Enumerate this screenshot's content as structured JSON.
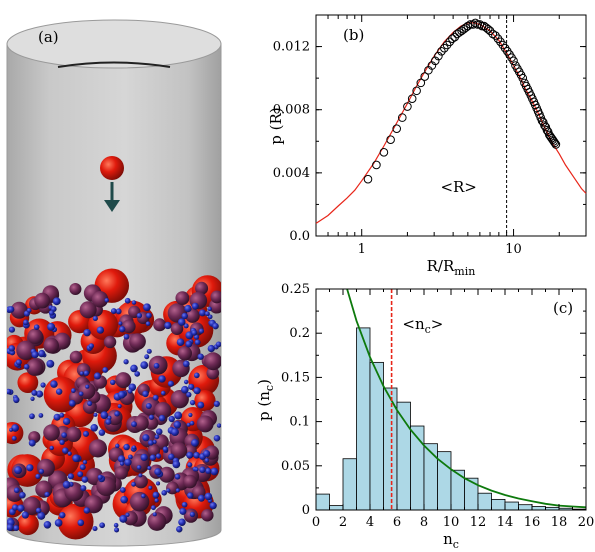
{
  "panels": {
    "a": "(a)",
    "b": "(b)",
    "c": "(c)"
  },
  "chart_data": [
    {
      "panel": "(b)",
      "type": "scatter",
      "xlabel": "R/R_min",
      "ylabel": "p (R)",
      "xscale": "log",
      "xlim": [
        0.5,
        30
      ],
      "ylim": [
        0.0,
        0.014
      ],
      "xticks": [
        1,
        10
      ],
      "xtick_labels": [
        "1",
        "10"
      ],
      "yticks": [
        0.0,
        0.004,
        0.008,
        0.012
      ],
      "ytick_labels": [
        "0.0",
        "0.004",
        "0.008",
        "0.012"
      ],
      "annotation": "<R>",
      "mean_line_x": 9,
      "fit_color": "#e8261a",
      "point_color": "#000000",
      "fit": {
        "x": [
          0.5,
          0.6,
          0.7,
          0.8,
          0.9,
          1.0,
          1.2,
          1.4,
          1.6,
          1.8,
          2.0,
          2.3,
          2.6,
          3.0,
          3.5,
          4.0,
          4.5,
          5.0,
          5.5,
          6.0,
          6.5,
          7.0,
          8.0,
          9.0,
          10.0,
          11.0,
          12.0,
          13.0,
          14.0,
          15.0,
          16.0,
          17.0,
          18.0,
          20.0,
          22.0,
          25.0,
          28.0,
          30.0
        ],
        "y": [
          0.0008,
          0.0013,
          0.0019,
          0.0024,
          0.0029,
          0.0035,
          0.0046,
          0.0057,
          0.0067,
          0.0076,
          0.0084,
          0.0095,
          0.0104,
          0.0114,
          0.0123,
          0.0129,
          0.0133,
          0.0135,
          0.0135,
          0.0134,
          0.0132,
          0.013,
          0.0124,
          0.0116,
          0.0108,
          0.0101,
          0.0093,
          0.0087,
          0.0081,
          0.0075,
          0.0069,
          0.0064,
          0.0059,
          0.0052,
          0.0045,
          0.0037,
          0.003,
          0.0027
        ]
      },
      "points": {
        "x": [
          1.1,
          1.25,
          1.4,
          1.55,
          1.7,
          1.85,
          2.0,
          2.15,
          2.3,
          2.45,
          2.6,
          2.75,
          2.9,
          3.05,
          3.2,
          3.35,
          3.5,
          3.65,
          3.8,
          3.95,
          4.1,
          4.25,
          4.4,
          4.55,
          4.7,
          4.85,
          5.0,
          5.2,
          5.4,
          5.6,
          5.8,
          6.0,
          6.2,
          6.4,
          6.6,
          6.8,
          7.0,
          7.3,
          7.6,
          7.9,
          8.2,
          8.5,
          8.8,
          9.1,
          9.4,
          9.7,
          10.0,
          10.3,
          10.6,
          10.9,
          11.2,
          11.5,
          11.8,
          12.1,
          12.4,
          12.7,
          13.0,
          13.3,
          13.6,
          13.9,
          14.2,
          14.5,
          14.8,
          15.1,
          15.4,
          15.7,
          16.0,
          16.3,
          16.6,
          16.9,
          17.2,
          17.5,
          17.8,
          18.1,
          18.4,
          18.7,
          19.0
        ],
        "y": [
          0.0036,
          0.0045,
          0.0053,
          0.0061,
          0.0068,
          0.0075,
          0.0082,
          0.0087,
          0.0092,
          0.0097,
          0.0101,
          0.0105,
          0.0108,
          0.0111,
          0.0114,
          0.0117,
          0.0119,
          0.0121,
          0.0123,
          0.0125,
          0.0126,
          0.0128,
          0.0129,
          0.013,
          0.0131,
          0.0132,
          0.0133,
          0.0134,
          0.0134,
          0.0135,
          0.0134,
          0.0134,
          0.0133,
          0.0133,
          0.0132,
          0.0131,
          0.013,
          0.0128,
          0.0127,
          0.0125,
          0.0123,
          0.0121,
          0.0119,
          0.0117,
          0.0115,
          0.0113,
          0.0111,
          0.0108,
          0.0106,
          0.0104,
          0.0102,
          0.01,
          0.0097,
          0.0095,
          0.0093,
          0.0091,
          0.0089,
          0.0087,
          0.0085,
          0.0083,
          0.0081,
          0.0079,
          0.0077,
          0.0075,
          0.0073,
          0.0072,
          0.007,
          0.0069,
          0.0067,
          0.0066,
          0.0064,
          0.0063,
          0.0062,
          0.0061,
          0.006,
          0.0059,
          0.0058
        ]
      }
    },
    {
      "panel": "(c)",
      "type": "bar",
      "xlabel": "n_c",
      "ylabel": "p (n_c)",
      "xlim": [
        0,
        20
      ],
      "ylim": [
        0,
        0.25
      ],
      "xticks": [
        0,
        2,
        4,
        6,
        8,
        10,
        12,
        14,
        16,
        18,
        20
      ],
      "yticks": [
        0,
        0.05,
        0.1,
        0.15,
        0.2,
        0.25
      ],
      "ytick_labels": [
        "0",
        "0.05",
        "0.1",
        "0.15",
        "0.2",
        "0.25"
      ],
      "annotation": "<n_c>",
      "mean_line_x": 5.6,
      "bar_color": "#add8e6",
      "fit_color": "#0e7a0d",
      "mean_color": "#e8261a",
      "bins": {
        "x": [
          0,
          1,
          2,
          3,
          4,
          5,
          6,
          7,
          8,
          9,
          10,
          11,
          12,
          13,
          14,
          15,
          16,
          17,
          18,
          19
        ],
        "values": [
          0.018,
          0.005,
          0.058,
          0.206,
          0.167,
          0.138,
          0.122,
          0.095,
          0.075,
          0.066,
          0.045,
          0.036,
          0.019,
          0.012,
          0.009,
          0.006,
          0.004,
          0.003,
          0.002,
          0.001
        ]
      },
      "fit": {
        "x": [
          2.3,
          3,
          4,
          5,
          6,
          7,
          8,
          9,
          10,
          11,
          12,
          13,
          14,
          15,
          16,
          17,
          18,
          19,
          20
        ],
        "y": [
          0.25,
          0.214,
          0.173,
          0.14,
          0.113,
          0.091,
          0.073,
          0.058,
          0.046,
          0.036,
          0.028,
          0.022,
          0.017,
          0.013,
          0.01,
          0.007,
          0.005,
          0.004,
          0.003
        ]
      }
    }
  ]
}
